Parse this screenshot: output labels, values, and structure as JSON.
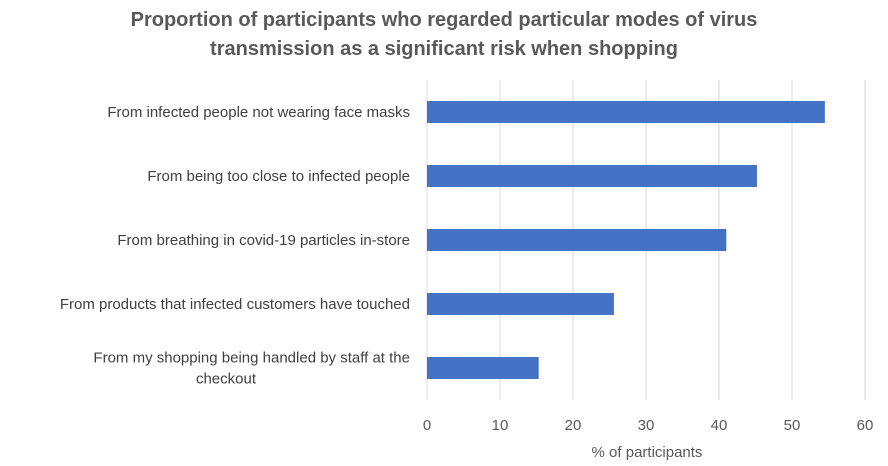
{
  "chart_data": {
    "type": "bar",
    "orientation": "horizontal",
    "title_lines": [
      "Proportion of participants who regarded particular modes of virus",
      "transmission as a significant risk when shopping"
    ],
    "categories": [
      [
        "From infected people not wearing face masks"
      ],
      [
        "From being too close to infected people"
      ],
      [
        "From breathing in covid-19 particles in-store"
      ],
      [
        "From products that infected customers have touched"
      ],
      [
        "From my shopping  being handled by staff at the",
        "checkout"
      ]
    ],
    "values": [
      54.5,
      45.2,
      41.0,
      25.6,
      15.3
    ],
    "xlabel": "% of participants",
    "ylabel": "",
    "xlim": [
      0,
      60
    ],
    "xticks": [
      0,
      10,
      20,
      30,
      40,
      50,
      60
    ],
    "colors": {
      "bar": "#4472C4",
      "grid": "#D9D9D9"
    },
    "grid": true,
    "legend": "none"
  }
}
